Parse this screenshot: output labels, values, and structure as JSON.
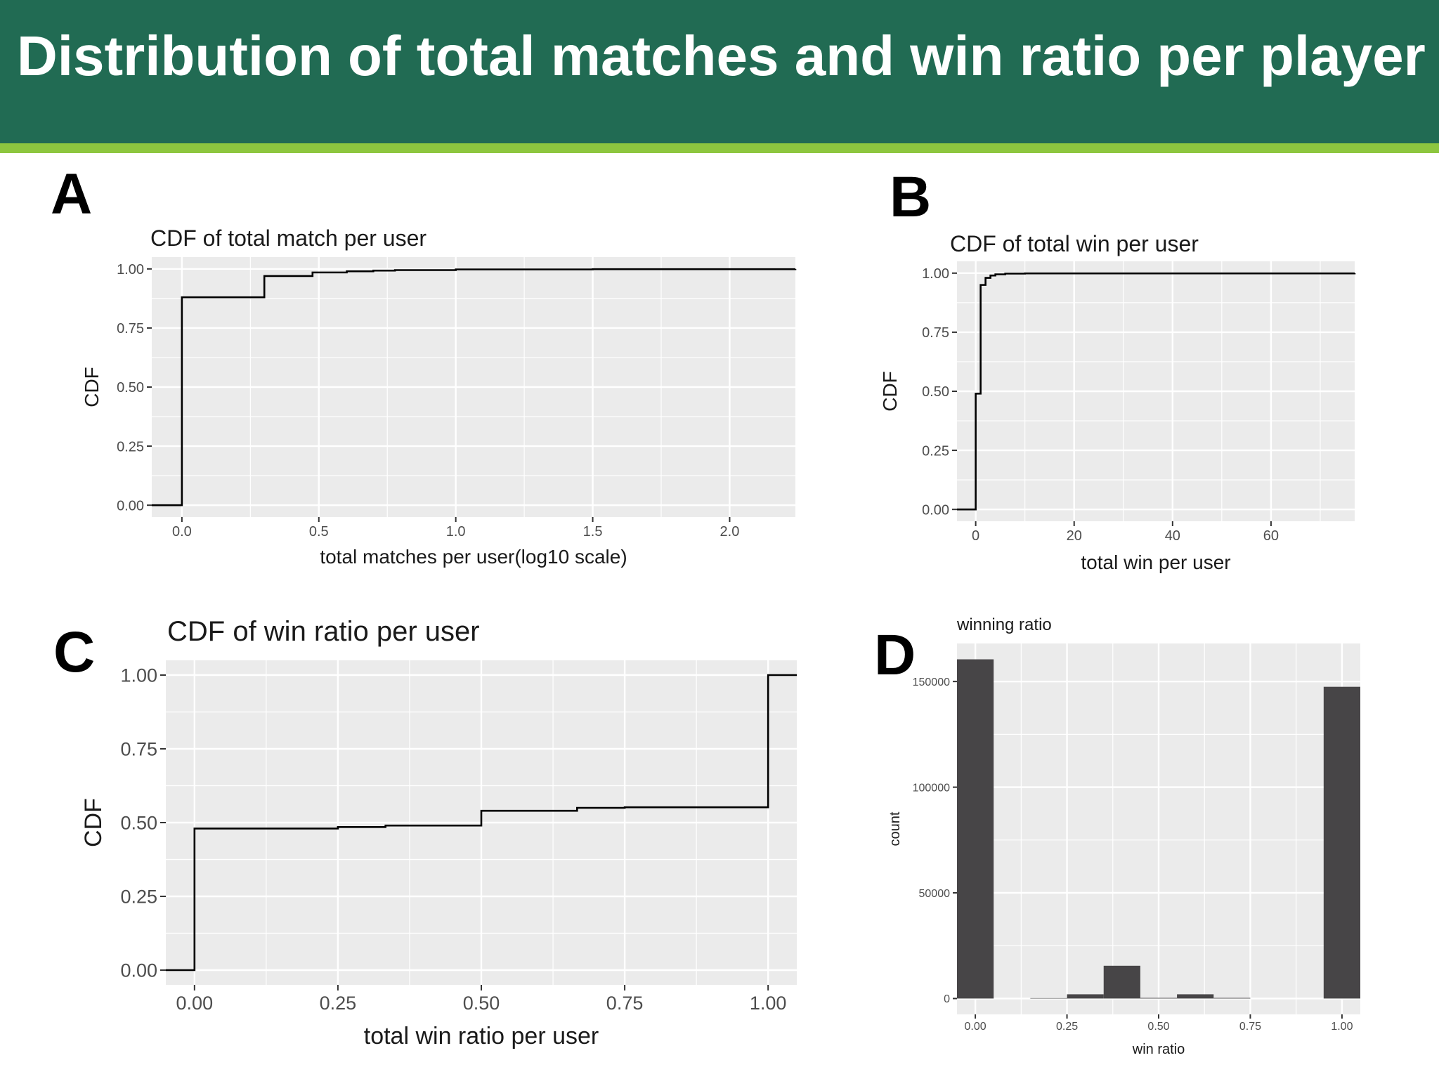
{
  "header": {
    "title": "Distribution of total matches and win ratio per player"
  },
  "colors": {
    "banner": "#216b53",
    "stripe": "#8dc63f",
    "panel_bg": "#ebebeb",
    "line": "#000000",
    "bar": "#474547"
  },
  "chart_data": [
    {
      "panel": "A",
      "type": "line",
      "step": true,
      "title": "CDF of total match per user",
      "xlabel": "total matches per user(log10 scale)",
      "ylabel": "CDF",
      "xlim": [
        -0.11,
        2.24
      ],
      "ylim": [
        -0.05,
        1.05
      ],
      "x_ticks": [
        0.0,
        0.5,
        1.0,
        1.5,
        2.0
      ],
      "x_tick_labels": [
        "0.0",
        "0.5",
        "1.0",
        "1.5",
        "2.0"
      ],
      "y_ticks": [
        0,
        0.25,
        0.5,
        0.75,
        1.0
      ],
      "y_tick_labels": [
        "0.00",
        "0.25",
        "0.50",
        "0.75",
        "1.00"
      ],
      "grid": true,
      "x": [
        -0.11,
        0.0,
        0.301,
        0.477,
        0.602,
        0.699,
        0.778,
        1.0,
        1.5,
        2.24
      ],
      "y": [
        0.0,
        0.88,
        0.97,
        0.985,
        0.99,
        0.993,
        0.995,
        0.998,
        0.999,
        1.0
      ]
    },
    {
      "panel": "B",
      "type": "line",
      "step": true,
      "title": "CDF of total win per user",
      "xlabel": "total win per user",
      "ylabel": "CDF",
      "xlim": [
        -3.8,
        77
      ],
      "ylim": [
        -0.05,
        1.05
      ],
      "x_ticks": [
        0,
        20,
        40,
        60
      ],
      "x_tick_labels": [
        "0",
        "20",
        "40",
        "60"
      ],
      "y_ticks": [
        0,
        0.25,
        0.5,
        0.75,
        1.0
      ],
      "y_tick_labels": [
        "0.00",
        "0.25",
        "0.50",
        "0.75",
        "1.00"
      ],
      "grid": true,
      "x": [
        -3.8,
        0,
        1,
        2,
        3,
        4,
        6,
        10,
        77
      ],
      "y": [
        0.0,
        0.49,
        0.95,
        0.98,
        0.99,
        0.995,
        0.998,
        0.999,
        1.0
      ]
    },
    {
      "panel": "C",
      "type": "line",
      "step": true,
      "title": "CDF of win ratio per user",
      "xlabel": "total win ratio per user",
      "ylabel": "CDF",
      "xlim": [
        -0.05,
        1.05
      ],
      "ylim": [
        -0.05,
        1.05
      ],
      "x_ticks": [
        0.0,
        0.25,
        0.5,
        0.75,
        1.0
      ],
      "x_tick_labels": [
        "0.00",
        "0.25",
        "0.50",
        "0.75",
        "1.00"
      ],
      "y_ticks": [
        0,
        0.25,
        0.5,
        0.75,
        1.0
      ],
      "y_tick_labels": [
        "0.00",
        "0.25",
        "0.50",
        "0.75",
        "1.00"
      ],
      "grid": true,
      "x": [
        -0.05,
        0.0,
        0.25,
        0.333,
        0.5,
        0.667,
        0.75,
        1.0,
        1.05
      ],
      "y": [
        0.0,
        0.48,
        0.485,
        0.49,
        0.54,
        0.55,
        0.552,
        1.0,
        1.0
      ]
    },
    {
      "panel": "D",
      "type": "bar",
      "title": "winning ratio",
      "xlabel": "win ratio",
      "ylabel": "count",
      "xlim": [
        -0.05,
        1.05
      ],
      "ylim": [
        -7500,
        168000
      ],
      "bin_width": 0.1,
      "x_ticks": [
        0.0,
        0.25,
        0.5,
        0.75,
        1.0
      ],
      "x_tick_labels": [
        "0.00",
        "0.25",
        "0.50",
        "0.75",
        "1.00"
      ],
      "y_ticks": [
        0,
        50000,
        100000,
        150000
      ],
      "y_tick_labels": [
        "0",
        "50000",
        "100000",
        "150000"
      ],
      "grid": true,
      "bin_centers": [
        0.0,
        0.1,
        0.2,
        0.3,
        0.4,
        0.5,
        0.6,
        0.7,
        0.8,
        0.9,
        1.0
      ],
      "values": [
        160500,
        0,
        200,
        2000,
        15500,
        300,
        2000,
        300,
        0,
        0,
        147500
      ]
    }
  ]
}
